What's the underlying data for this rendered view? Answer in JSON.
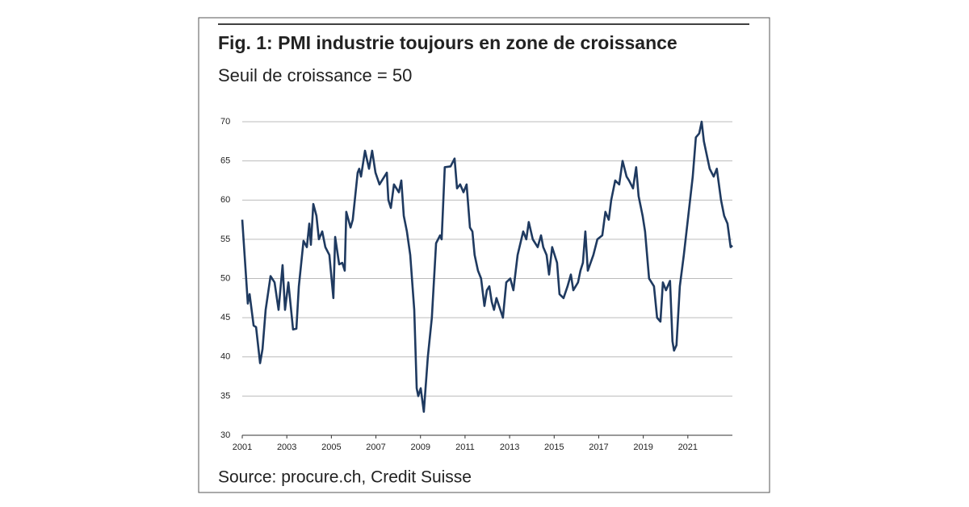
{
  "chart_data": {
    "type": "line",
    "title": "Fig. 1: PMI industrie toujours en zone de croissance",
    "subtitle": "Seuil de croissance = 50",
    "source": "Source: procure.ch, Credit Suisse",
    "xlim": [
      2001,
      2023
    ],
    "xticks": [
      2001,
      2003,
      2005,
      2007,
      2009,
      2011,
      2013,
      2015,
      2017,
      2019,
      2021
    ],
    "ylim": [
      30,
      70
    ],
    "yticks": [
      30,
      35,
      40,
      45,
      50,
      55,
      60,
      65,
      70
    ],
    "grid": true,
    "series": [
      {
        "color": "#1f3a60",
        "x": [
          2001.0,
          2001.25,
          2001.33,
          2001.51,
          2001.62,
          2001.8,
          2001.91,
          2002.05,
          2002.27,
          2002.45,
          2002.63,
          2002.81,
          2002.92,
          2003.07,
          2003.28,
          2003.43,
          2003.54,
          2003.75,
          2003.9,
          2004.01,
          2004.08,
          2004.19,
          2004.33,
          2004.44,
          2004.59,
          2004.73,
          2004.91,
          2005.09,
          2005.17,
          2005.35,
          2005.49,
          2005.6,
          2005.67,
          2005.86,
          2005.96,
          2006.18,
          2006.25,
          2006.33,
          2006.51,
          2006.69,
          2006.83,
          2006.98,
          2007.16,
          2007.49,
          2007.56,
          2007.67,
          2007.81,
          2008.03,
          2008.14,
          2008.25,
          2008.39,
          2008.54,
          2008.72,
          2008.83,
          2008.9,
          2009.01,
          2009.15,
          2009.33,
          2009.51,
          2009.7,
          2009.88,
          2009.95,
          2010.09,
          2010.35,
          2010.53,
          2010.64,
          2010.78,
          2010.93,
          2011.07,
          2011.22,
          2011.33,
          2011.43,
          2011.58,
          2011.72,
          2011.87,
          2011.98,
          2012.09,
          2012.2,
          2012.3,
          2012.41,
          2012.7,
          2012.85,
          2013.03,
          2013.17,
          2013.36,
          2013.61,
          2013.75,
          2013.86,
          2014.04,
          2014.26,
          2014.41,
          2014.51,
          2014.66,
          2014.77,
          2014.91,
          2015.13,
          2015.24,
          2015.42,
          2015.6,
          2015.75,
          2015.86,
          2016.07,
          2016.18,
          2016.29,
          2016.4,
          2016.51,
          2016.76,
          2016.94,
          2017.16,
          2017.3,
          2017.45,
          2017.56,
          2017.74,
          2017.92,
          2018.07,
          2018.25,
          2018.36,
          2018.54,
          2018.68,
          2018.79,
          2018.97,
          2019.08,
          2019.26,
          2019.48,
          2019.62,
          2019.77,
          2019.88,
          2020.02,
          2020.2,
          2020.31,
          2020.38,
          2020.49,
          2020.64,
          2020.82,
          2021.04,
          2021.22,
          2021.36,
          2021.51,
          2021.62,
          2021.72,
          2021.98,
          2022.16,
          2022.3,
          2022.49,
          2022.63,
          2022.78,
          2022.92,
          2023.0
        ],
        "values": [
          57.5,
          46.8,
          48,
          44,
          43.8,
          39.2,
          41,
          46,
          50.3,
          49.5,
          46,
          51.7,
          46,
          49.5,
          43.5,
          43.6,
          49,
          54.8,
          54,
          57,
          54.3,
          59.5,
          58,
          55,
          56,
          54,
          53,
          47.5,
          55.3,
          51.8,
          52,
          51,
          58.5,
          56.5,
          57.5,
          63.5,
          64,
          63,
          66.3,
          64,
          66.3,
          63.5,
          62,
          63.5,
          60,
          59,
          62,
          61,
          62.5,
          58,
          56,
          53,
          46,
          36,
          35,
          36,
          33,
          40,
          45,
          54.5,
          55.5,
          55,
          64.2,
          64.3,
          65.3,
          61.5,
          62,
          61,
          62,
          56.5,
          56,
          53,
          51,
          50,
          46.5,
          48.5,
          49,
          47,
          46,
          47.5,
          45,
          49.5,
          50,
          48.5,
          53,
          56,
          55,
          57.2,
          55,
          54,
          55.5,
          54,
          53,
          50.5,
          54,
          52,
          48,
          47.5,
          49,
          50.5,
          48.5,
          49.5,
          51,
          52,
          56,
          51,
          53,
          55,
          55.5,
          58.5,
          57.5,
          60,
          62.5,
          62,
          65,
          63,
          62.5,
          61.5,
          64.2,
          60.5,
          58,
          56,
          50,
          49,
          45,
          44.5,
          49.5,
          48.5,
          49.7,
          42,
          40.8,
          41.5,
          49,
          53,
          58.5,
          63,
          68,
          68.5,
          70,
          67.5,
          64,
          63,
          64,
          60,
          58,
          57,
          54,
          54.2
        ]
      }
    ]
  }
}
